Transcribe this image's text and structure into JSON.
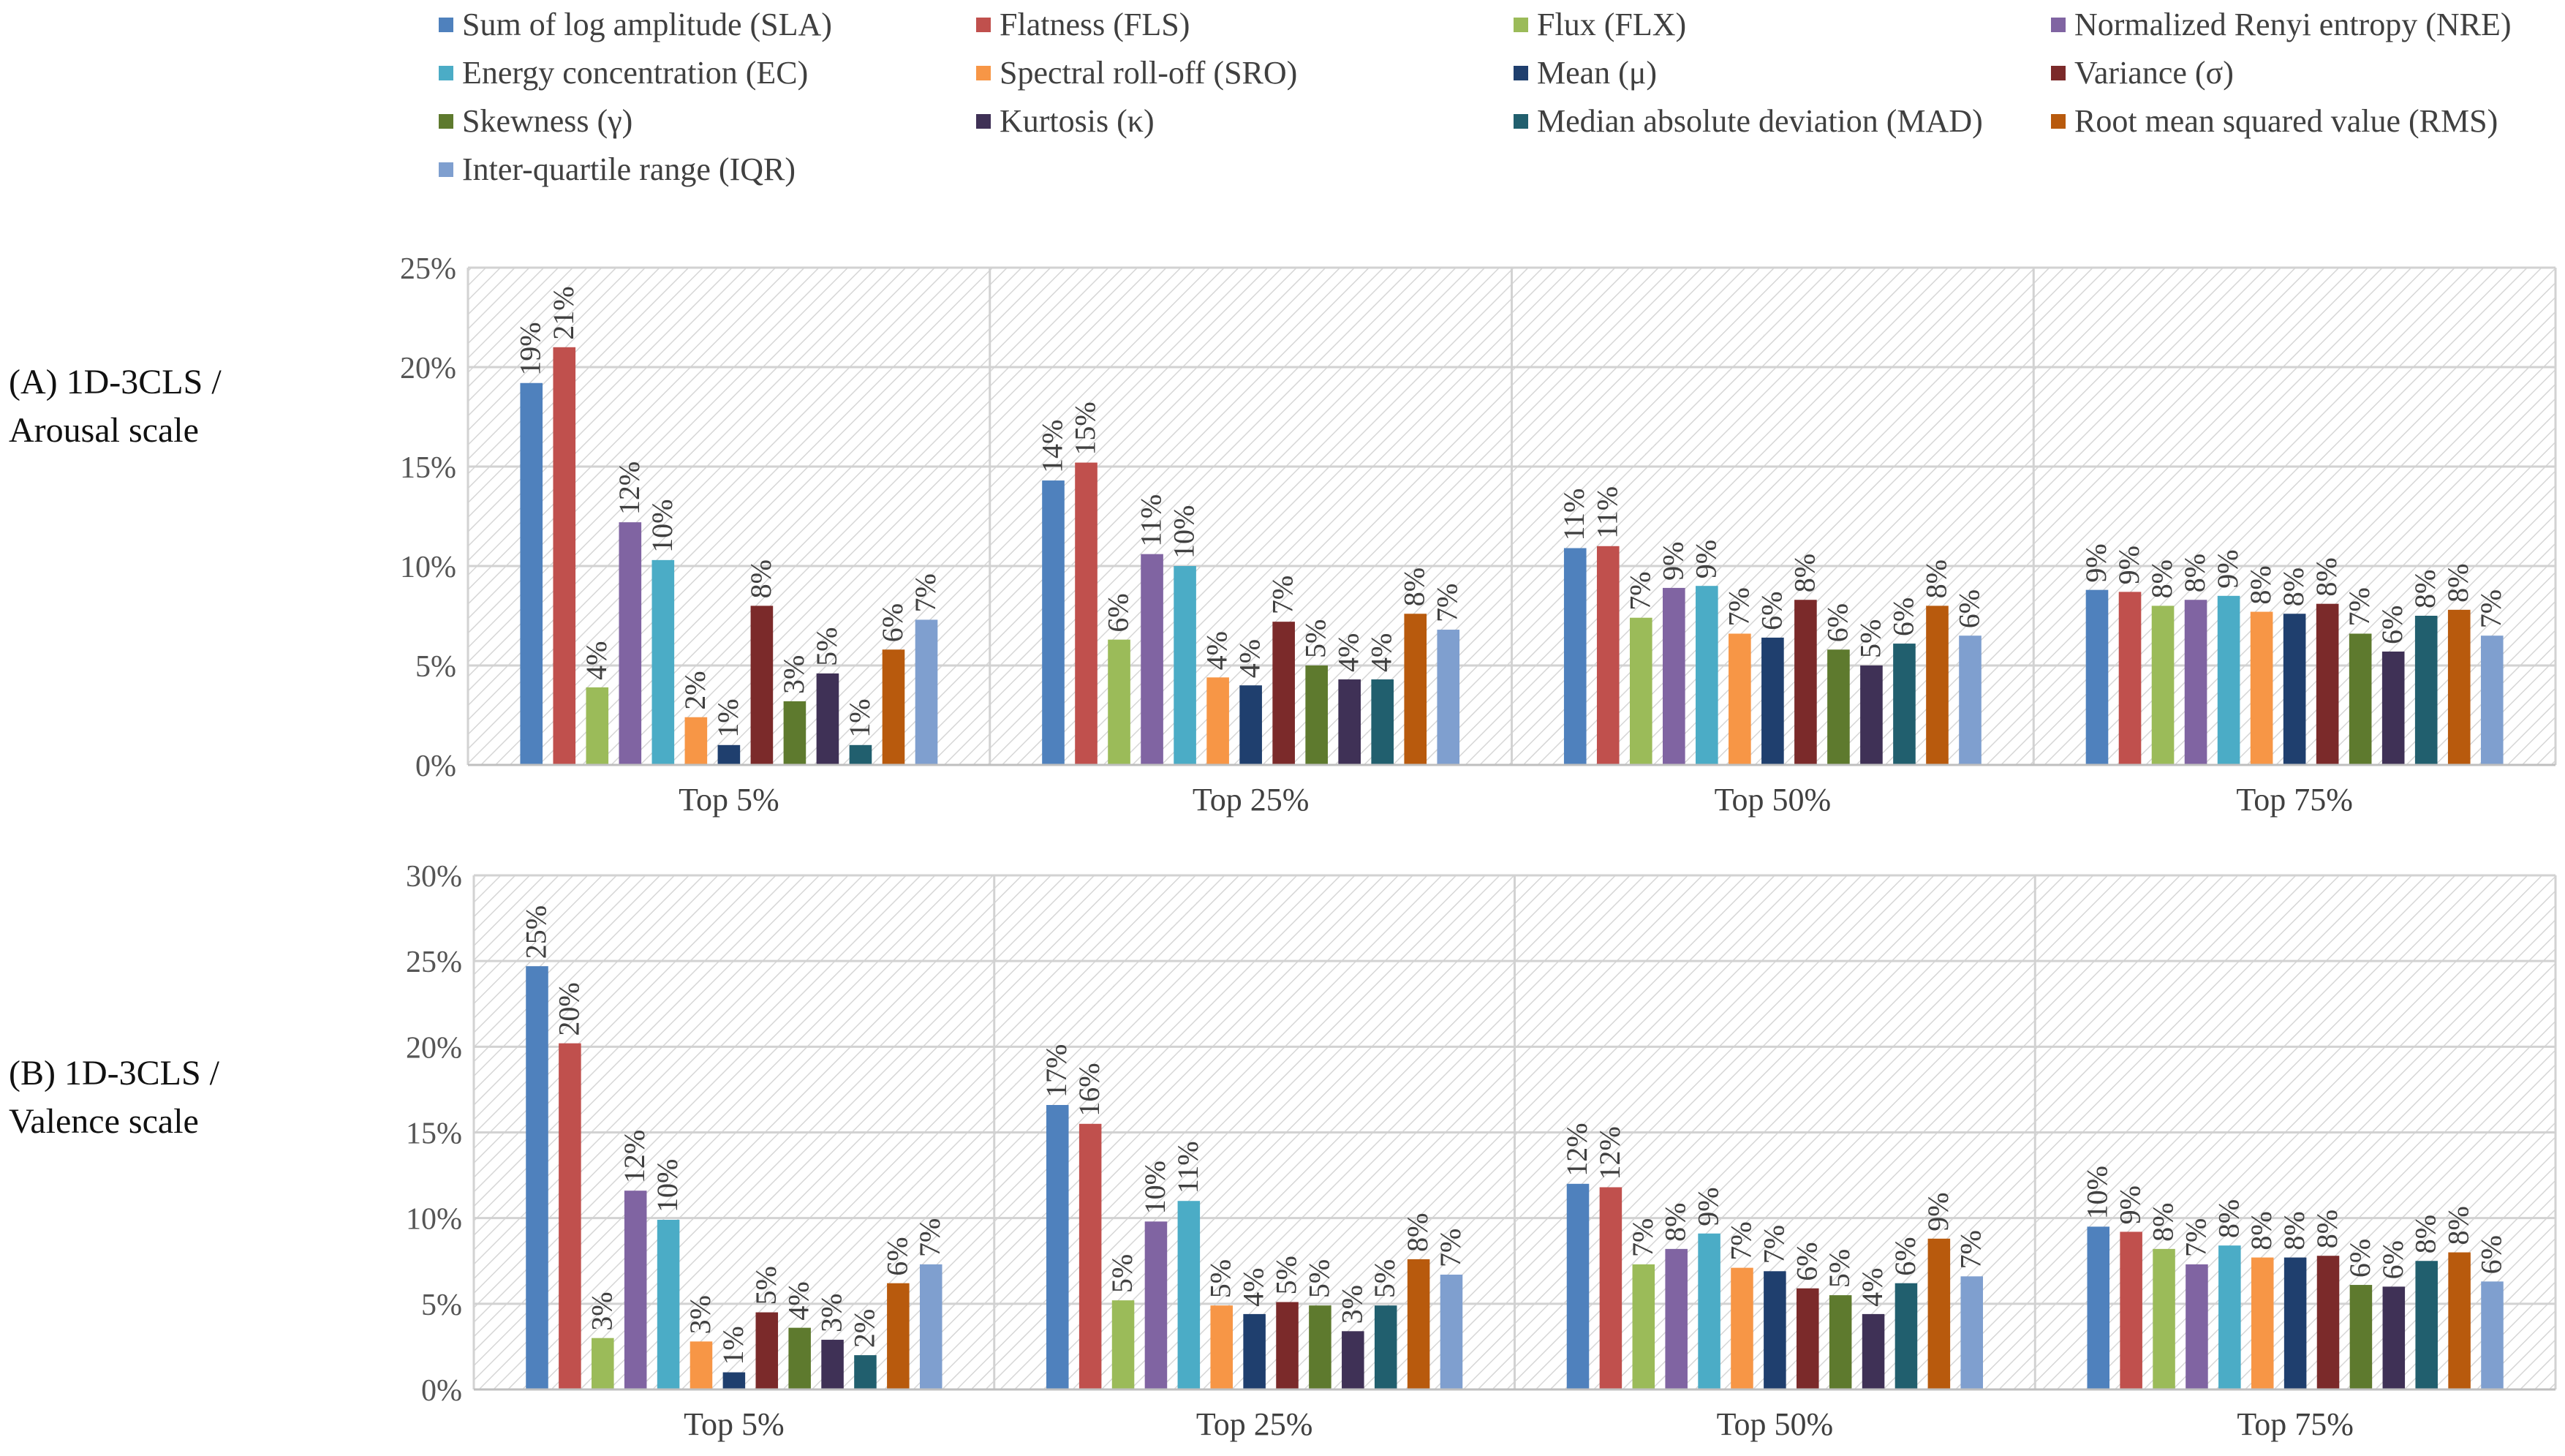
{
  "legend": {
    "items": [
      {
        "label": "Sum of log amplitude (SLA)",
        "color": "#4F81BD"
      },
      {
        "label": "Flatness (FLS)",
        "color": "#C0504D"
      },
      {
        "label": "Flux (FLX)",
        "color": "#9BBB59"
      },
      {
        "label": "Normalized Renyi entropy (NRE)",
        "color": "#8064A2"
      },
      {
        "label": "Energy concentration (EC)",
        "color": "#4BACC6"
      },
      {
        "label": "Spectral roll-off (SRO)",
        "color": "#F79646"
      },
      {
        "label": "Mean (μ)",
        "color": "#1F3F6E"
      },
      {
        "label": "Variance (σ)",
        "color": "#7B2A2A"
      },
      {
        "label": "Skewness (γ)",
        "color": "#5E7A2E"
      },
      {
        "label": "Kurtosis (κ)",
        "color": "#3F3156"
      },
      {
        "label": "Median absolute deviation (MAD)",
        "color": "#215F6E"
      },
      {
        "label": "Root mean squared value (RMS)",
        "color": "#B85A0D"
      },
      {
        "label": "Inter-quartile range (IQR)",
        "color": "#7F9FCF"
      }
    ]
  },
  "panels": {
    "a": {
      "line1": "(A) 1D-3CLS /",
      "line2": "Arousal scale"
    },
    "b": {
      "line1": "(B) 1D-3CLS /",
      "line2": "Valence scale"
    }
  },
  "chart_data": [
    {
      "type": "bar",
      "title": "(A) 1D-3CLS / Arousal scale",
      "categories": [
        "Top 5%",
        "Top 25%",
        "Top 50%",
        "Top 75%"
      ],
      "yticks": [
        "0%",
        "5%",
        "10%",
        "15%",
        "20%",
        "25%"
      ],
      "ylim": [
        0,
        25
      ],
      "series": [
        {
          "name": "Sum of log amplitude (SLA)",
          "values": [
            19.2,
            14.3,
            10.9,
            8.8
          ],
          "labels": [
            "19%",
            "14%",
            "11%",
            "9%"
          ]
        },
        {
          "name": "Flatness (FLS)",
          "values": [
            21.0,
            15.2,
            11.0,
            8.7
          ],
          "labels": [
            "21%",
            "15%",
            "11%",
            "9%"
          ]
        },
        {
          "name": "Flux (FLX)",
          "values": [
            3.9,
            6.3,
            7.4,
            8.0
          ],
          "labels": [
            "4%",
            "6%",
            "7%",
            "8%"
          ]
        },
        {
          "name": "Normalized Renyi entropy (NRE)",
          "values": [
            12.2,
            10.6,
            8.9,
            8.3
          ],
          "labels": [
            "12%",
            "11%",
            "9%",
            "8%"
          ]
        },
        {
          "name": "Energy concentration (EC)",
          "values": [
            10.3,
            10.0,
            9.0,
            8.5
          ],
          "labels": [
            "10%",
            "10%",
            "9%",
            "9%"
          ]
        },
        {
          "name": "Spectral roll-off (SRO)",
          "values": [
            2.4,
            4.4,
            6.6,
            7.7
          ],
          "labels": [
            "2%",
            "4%",
            "7%",
            "8%"
          ]
        },
        {
          "name": "Mean (μ)",
          "values": [
            1.0,
            4.0,
            6.4,
            7.6
          ],
          "labels": [
            "1%",
            "4%",
            "6%",
            "8%"
          ]
        },
        {
          "name": "Variance (σ)",
          "values": [
            8.0,
            7.2,
            8.3,
            8.1
          ],
          "labels": [
            "8%",
            "7%",
            "8%",
            "8%"
          ]
        },
        {
          "name": "Skewness (γ)",
          "values": [
            3.2,
            5.0,
            5.8,
            6.6
          ],
          "labels": [
            "3%",
            "5%",
            "6%",
            "7%"
          ]
        },
        {
          "name": "Kurtosis (κ)",
          "values": [
            4.6,
            4.3,
            5.0,
            5.7
          ],
          "labels": [
            "5%",
            "4%",
            "5%",
            "6%"
          ]
        },
        {
          "name": "Median absolute deviation (MAD)",
          "values": [
            1.0,
            4.3,
            6.1,
            7.5
          ],
          "labels": [
            "1%",
            "4%",
            "6%",
            "8%"
          ]
        },
        {
          "name": "Root mean squared value (RMS)",
          "values": [
            5.8,
            7.6,
            8.0,
            7.8
          ],
          "labels": [
            "6%",
            "8%",
            "8%",
            "8%"
          ]
        },
        {
          "name": "Inter-quartile range (IQR)",
          "values": [
            7.3,
            6.8,
            6.5,
            6.5
          ],
          "labels": [
            "7%",
            "7%",
            "6%",
            "7%"
          ]
        }
      ]
    },
    {
      "type": "bar",
      "title": "(B) 1D-3CLS / Valence scale",
      "categories": [
        "Top 5%",
        "Top 25%",
        "Top 50%",
        "Top 75%"
      ],
      "yticks": [
        "0%",
        "5%",
        "10%",
        "15%",
        "20%",
        "25%",
        "30%"
      ],
      "ylim": [
        0,
        30
      ],
      "series": [
        {
          "name": "Sum of log amplitude (SLA)",
          "values": [
            24.7,
            16.6,
            12.0,
            9.5
          ],
          "labels": [
            "25%",
            "17%",
            "12%",
            "10%"
          ]
        },
        {
          "name": "Flatness (FLS)",
          "values": [
            20.2,
            15.5,
            11.8,
            9.2
          ],
          "labels": [
            "20%",
            "16%",
            "12%",
            "9%"
          ]
        },
        {
          "name": "Flux (FLX)",
          "values": [
            3.0,
            5.2,
            7.3,
            8.2
          ],
          "labels": [
            "3%",
            "5%",
            "7%",
            "8%"
          ]
        },
        {
          "name": "Normalized Renyi entropy (NRE)",
          "values": [
            11.6,
            9.8,
            8.2,
            7.3
          ],
          "labels": [
            "12%",
            "10%",
            "8%",
            "7%"
          ]
        },
        {
          "name": "Energy concentration (EC)",
          "values": [
            9.9,
            11.0,
            9.1,
            8.4
          ],
          "labels": [
            "10%",
            "11%",
            "9%",
            "8%"
          ]
        },
        {
          "name": "Spectral roll-off (SRO)",
          "values": [
            2.8,
            4.9,
            7.1,
            7.7
          ],
          "labels": [
            "3%",
            "5%",
            "7%",
            "8%"
          ]
        },
        {
          "name": "Mean (μ)",
          "values": [
            1.0,
            4.4,
            6.9,
            7.7
          ],
          "labels": [
            "1%",
            "4%",
            "7%",
            "8%"
          ]
        },
        {
          "name": "Variance (σ)",
          "values": [
            4.5,
            5.1,
            5.9,
            7.8
          ],
          "labels": [
            "5%",
            "5%",
            "6%",
            "8%"
          ]
        },
        {
          "name": "Skewness (γ)",
          "values": [
            3.6,
            4.9,
            5.5,
            6.1
          ],
          "labels": [
            "4%",
            "5%",
            "5%",
            "6%"
          ]
        },
        {
          "name": "Kurtosis (κ)",
          "values": [
            2.9,
            3.4,
            4.4,
            6.0
          ],
          "labels": [
            "3%",
            "3%",
            "4%",
            "6%"
          ]
        },
        {
          "name": "Median absolute deviation (MAD)",
          "values": [
            2.0,
            4.9,
            6.2,
            7.5
          ],
          "labels": [
            "2%",
            "5%",
            "6%",
            "8%"
          ]
        },
        {
          "name": "Root mean squared value (RMS)",
          "values": [
            6.2,
            7.6,
            8.8,
            8.0
          ],
          "labels": [
            "6%",
            "8%",
            "9%",
            "8%"
          ]
        },
        {
          "name": "Inter-quartile range (IQR)",
          "values": [
            7.3,
            6.7,
            6.6,
            6.3
          ],
          "labels": [
            "7%",
            "7%",
            "7%",
            "6%"
          ]
        }
      ]
    }
  ]
}
